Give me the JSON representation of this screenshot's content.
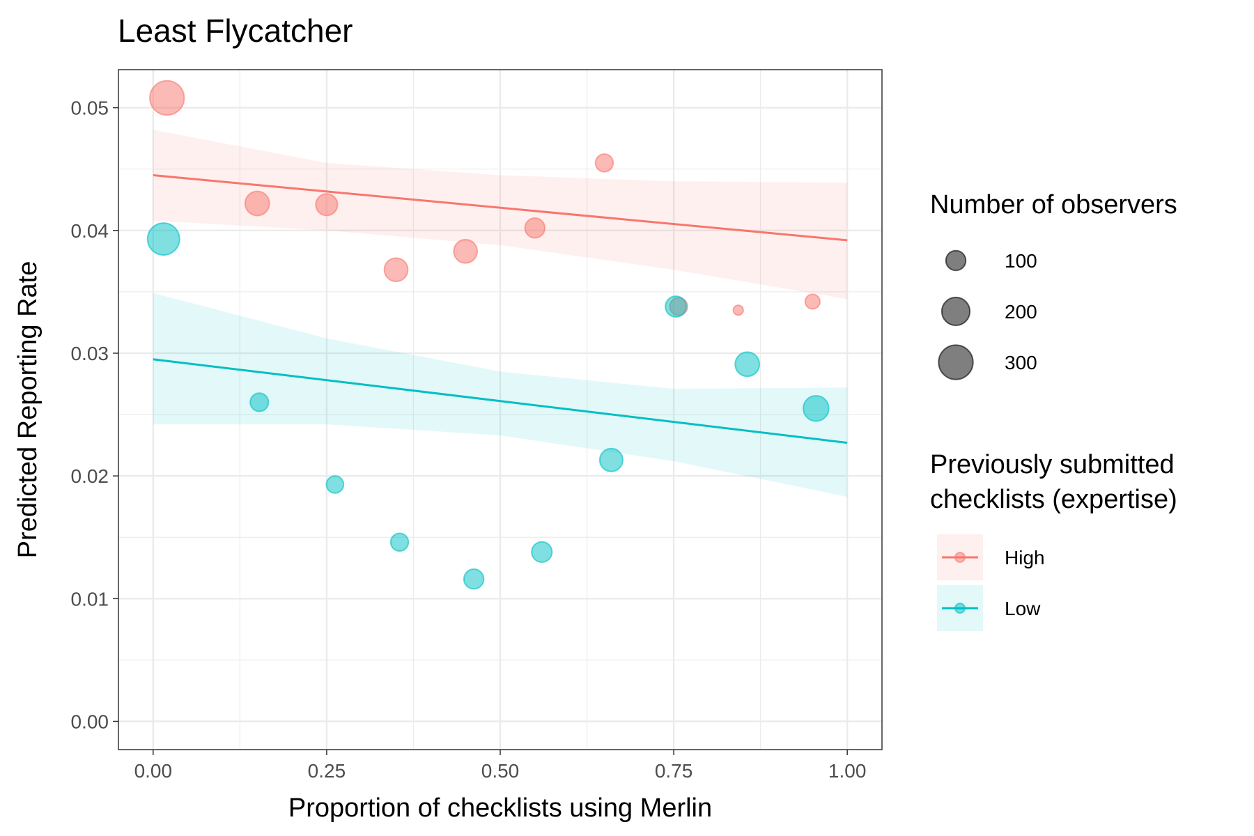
{
  "chart_data": {
    "type": "scatter",
    "title": "Least Flycatcher",
    "xlabel": "Proportion of checklists using Merlin",
    "ylabel": "Predicted Reporting Rate",
    "xlim": [
      -0.05,
      1.05
    ],
    "ylim": [
      -0.0023,
      0.0531
    ],
    "x_ticks": [
      "0.00",
      "0.25",
      "0.50",
      "0.75",
      "1.00"
    ],
    "y_ticks": [
      "0.00",
      "0.01",
      "0.02",
      "0.03",
      "0.04",
      "0.05"
    ],
    "grid": true,
    "legend_position": "right",
    "size_legend": {
      "title": "Number of observers",
      "entries": [
        {
          "label": "100",
          "value": 100
        },
        {
          "label": "200",
          "value": 200
        },
        {
          "label": "300",
          "value": 300
        }
      ]
    },
    "color_legend": {
      "title_lines": [
        "Previously submitted",
        "checklists (expertise)"
      ],
      "entries": [
        {
          "label": "High",
          "color": "#F8766D"
        },
        {
          "label": "Low",
          "color": "#00BFC4"
        }
      ]
    },
    "series": [
      {
        "name": "High",
        "color": "#F8766D",
        "points": [
          {
            "x": 0.02,
            "y": 0.0508,
            "n": 300
          },
          {
            "x": 0.15,
            "y": 0.0422,
            "n": 150
          },
          {
            "x": 0.25,
            "y": 0.0421,
            "n": 120
          },
          {
            "x": 0.35,
            "y": 0.0368,
            "n": 140
          },
          {
            "x": 0.45,
            "y": 0.0383,
            "n": 140
          },
          {
            "x": 0.55,
            "y": 0.0402,
            "n": 100
          },
          {
            "x": 0.65,
            "y": 0.0455,
            "n": 80
          },
          {
            "x": 0.757,
            "y": 0.0338,
            "n": 80
          },
          {
            "x": 0.843,
            "y": 0.0335,
            "n": 25
          },
          {
            "x": 0.95,
            "y": 0.0342,
            "n": 55
          }
        ],
        "trend": {
          "x": [
            0.0,
            1.0
          ],
          "y": [
            0.0445,
            0.0392
          ]
        },
        "band": {
          "x": [
            0.0,
            0.25,
            0.5,
            0.75,
            1.0
          ],
          "lower": [
            0.0408,
            0.04,
            0.0388,
            0.0368,
            0.0344
          ],
          "upper": [
            0.0482,
            0.0455,
            0.0445,
            0.044,
            0.0439
          ]
        }
      },
      {
        "name": "Low",
        "color": "#00BFC4",
        "points": [
          {
            "x": 0.015,
            "y": 0.0393,
            "n": 260
          },
          {
            "x": 0.153,
            "y": 0.026,
            "n": 85
          },
          {
            "x": 0.262,
            "y": 0.0193,
            "n": 75
          },
          {
            "x": 0.355,
            "y": 0.0146,
            "n": 80
          },
          {
            "x": 0.462,
            "y": 0.0116,
            "n": 100
          },
          {
            "x": 0.56,
            "y": 0.0138,
            "n": 105
          },
          {
            "x": 0.66,
            "y": 0.0213,
            "n": 135
          },
          {
            "x": 0.753,
            "y": 0.0338,
            "n": 110
          },
          {
            "x": 0.856,
            "y": 0.0291,
            "n": 150
          },
          {
            "x": 0.955,
            "y": 0.0255,
            "n": 165
          }
        ],
        "trend": {
          "x": [
            0.0,
            1.0
          ],
          "y": [
            0.0295,
            0.0227
          ]
        },
        "band": {
          "x": [
            0.0,
            0.25,
            0.5,
            0.75,
            1.0
          ],
          "lower": [
            0.0242,
            0.0242,
            0.0233,
            0.0212,
            0.0183
          ],
          "upper": [
            0.0349,
            0.0312,
            0.0285,
            0.0271,
            0.0272
          ]
        }
      }
    ]
  }
}
